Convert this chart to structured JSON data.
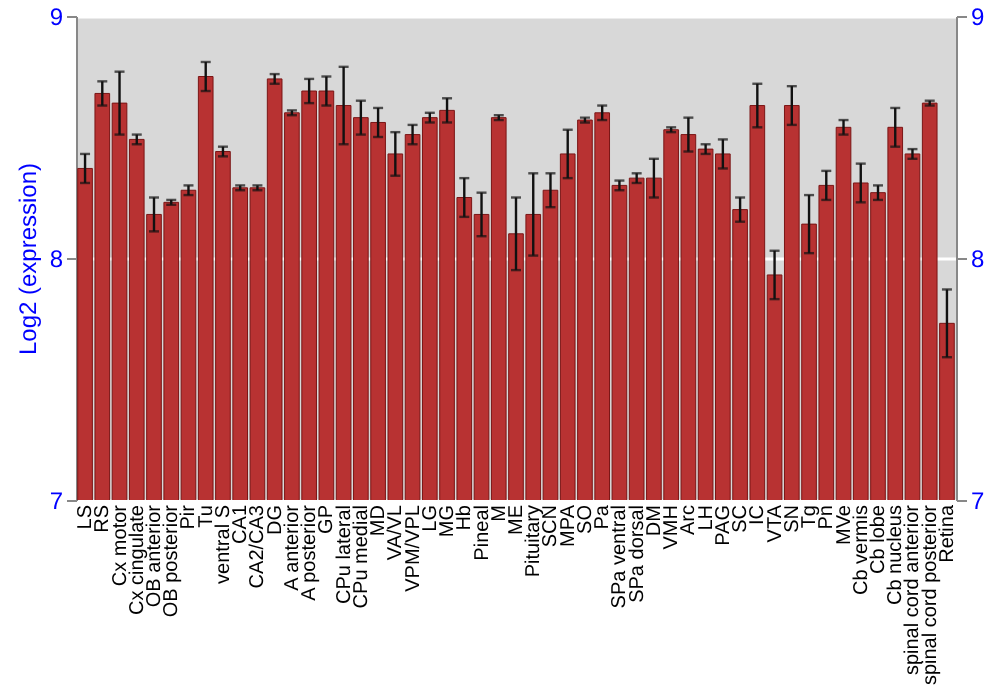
{
  "chart_data": {
    "type": "bar",
    "ylabel": "Log2 (expression)",
    "categories": [
      "LS",
      "RS",
      "Cx motor",
      "Cx cingulate",
      "OB anterior",
      "OB posterior",
      "Pir",
      "Tu",
      "ventral S",
      "CA1",
      "CA2/CA3",
      "DG",
      "A anterior",
      "A posterior",
      "GP",
      "CPu lateral",
      "CPu medial",
      "MD",
      "VA/VL",
      "VPM/VPL",
      "LG",
      "MG",
      "Hb",
      "Pineal",
      "M",
      "ME",
      "Pituitary",
      "SCN",
      "MPA",
      "SO",
      "Pa",
      "SPa ventral",
      "SPa dorsal",
      "DM",
      "VMH",
      "Arc",
      "LH",
      "PAG",
      "SC",
      "IC",
      "VTA",
      "SN",
      "Tg",
      "Pn",
      "MVe",
      "Cb vermis",
      "Cb lobe",
      "Cb nucleus",
      "spinal cord anterior",
      "spinal cord posterior",
      "Retina"
    ],
    "values": [
      8.37,
      8.68,
      8.64,
      8.49,
      8.18,
      8.23,
      8.28,
      8.75,
      8.44,
      8.29,
      8.29,
      8.74,
      8.6,
      8.69,
      8.69,
      8.63,
      8.58,
      8.56,
      8.43,
      8.51,
      8.58,
      8.61,
      8.25,
      8.18,
      8.58,
      8.1,
      8.18,
      8.28,
      8.43,
      8.57,
      8.6,
      8.3,
      8.33,
      8.33,
      8.53,
      8.51,
      8.45,
      8.43,
      8.2,
      8.63,
      7.93,
      8.63,
      8.14,
      8.3,
      8.54,
      8.31,
      8.27,
      8.54,
      8.43,
      8.64,
      7.73
    ],
    "errors": [
      0.06,
      0.05,
      0.13,
      0.02,
      0.07,
      0.01,
      0.02,
      0.06,
      0.02,
      0.01,
      0.01,
      0.02,
      0.01,
      0.05,
      0.06,
      0.16,
      0.07,
      0.06,
      0.09,
      0.04,
      0.02,
      0.05,
      0.08,
      0.09,
      0.01,
      0.15,
      0.17,
      0.07,
      0.1,
      0.01,
      0.03,
      0.02,
      0.02,
      0.08,
      0.01,
      0.07,
      0.02,
      0.06,
      0.05,
      0.09,
      0.1,
      0.08,
      0.12,
      0.06,
      0.03,
      0.08,
      0.03,
      0.08,
      0.02,
      0.01,
      0.14
    ],
    "color": "#b83232",
    "ylim": [
      7,
      9
    ],
    "yticks": [
      7,
      8,
      9
    ],
    "y2lim": [
      7,
      9
    ],
    "y2ticks": [
      7,
      8,
      9
    ],
    "grid": "y"
  }
}
